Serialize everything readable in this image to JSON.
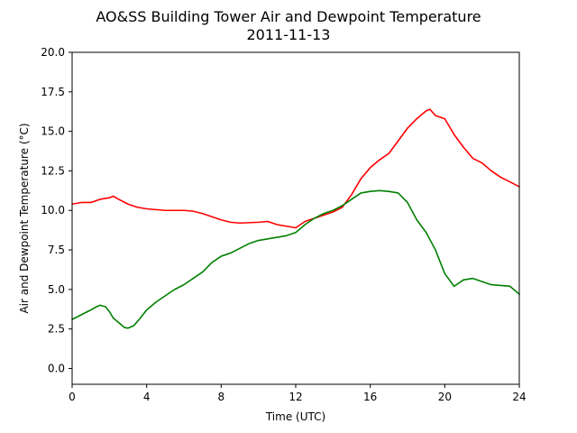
{
  "chart_data": {
    "type": "line",
    "title": "AO&SS Building Tower Air and Dewpoint Temperature",
    "subtitle": "2011-11-13",
    "xlabel": "Time (UTC)",
    "ylabel": "Air and Dewpoint Temperature (°C)",
    "xlim": [
      0,
      24
    ],
    "ylim": [
      -1.0,
      20.0
    ],
    "x_ticks": [
      0,
      4,
      8,
      12,
      16,
      20,
      24
    ],
    "y_ticks": [
      0.0,
      2.5,
      5.0,
      7.5,
      10.0,
      12.5,
      15.0,
      17.5,
      20.0
    ],
    "x_tick_labels": [
      "0",
      "4",
      "8",
      "12",
      "16",
      "20",
      "24"
    ],
    "y_tick_labels": [
      "0.0",
      "2.5",
      "5.0",
      "7.5",
      "10.0",
      "12.5",
      "15.0",
      "17.5",
      "20.0"
    ],
    "grid": false,
    "series": [
      {
        "color": "#ff0000",
        "x": [
          0,
          0.5,
          1,
          1.5,
          2,
          2.2,
          2.5,
          3,
          3.5,
          4,
          5,
          6,
          6.5,
          7,
          7.5,
          8,
          8.5,
          9,
          10,
          10.5,
          11,
          11.5,
          12,
          12.5,
          13,
          13.5,
          14,
          14.5,
          15,
          15.5,
          16,
          16.5,
          17,
          17.5,
          18,
          18.5,
          19,
          19.2,
          19.5,
          20,
          20.5,
          21,
          21.5,
          22,
          22.5,
          23,
          23.5,
          24
        ],
        "y": [
          10.4,
          10.5,
          10.5,
          10.7,
          10.8,
          10.9,
          10.7,
          10.4,
          10.2,
          10.1,
          10.0,
          10.0,
          9.95,
          9.8,
          9.6,
          9.4,
          9.25,
          9.2,
          9.25,
          9.3,
          9.1,
          9.0,
          8.9,
          9.3,
          9.5,
          9.7,
          9.9,
          10.2,
          11.0,
          12.0,
          12.7,
          13.2,
          13.6,
          14.4,
          15.2,
          15.8,
          16.3,
          16.4,
          16.0,
          15.8,
          14.8,
          14.0,
          13.3,
          13.0,
          12.5,
          12.1,
          11.8,
          11.5
        ]
      },
      {
        "color": "#008000",
        "x": [
          0,
          0.5,
          1,
          1.3,
          1.5,
          1.8,
          2,
          2.2,
          2.5,
          2.8,
          3,
          3.3,
          3.6,
          4,
          4.5,
          5,
          5.5,
          6,
          6.5,
          7,
          7.5,
          8,
          8.5,
          9,
          9.5,
          10,
          10.5,
          11,
          11.5,
          12,
          12.5,
          13,
          13.5,
          14,
          14.5,
          15,
          15.5,
          16,
          16.5,
          17,
          17.5,
          18,
          18.5,
          19,
          19.5,
          20,
          20.5,
          21,
          21.5,
          22,
          22.5,
          23,
          23.5,
          24
        ],
        "y": [
          3.1,
          3.4,
          3.7,
          3.9,
          4.0,
          3.9,
          3.6,
          3.2,
          2.9,
          2.6,
          2.55,
          2.7,
          3.1,
          3.7,
          4.2,
          4.6,
          5.0,
          5.3,
          5.7,
          6.1,
          6.7,
          7.1,
          7.3,
          7.6,
          7.9,
          8.1,
          8.2,
          8.3,
          8.4,
          8.6,
          9.1,
          9.5,
          9.8,
          10.0,
          10.3,
          10.7,
          11.1,
          11.2,
          11.25,
          11.2,
          11.1,
          10.5,
          9.4,
          8.6,
          7.5,
          6.0,
          5.2,
          5.6,
          5.7,
          5.5,
          5.3,
          5.25,
          5.2,
          4.7
        ]
      }
    ]
  }
}
